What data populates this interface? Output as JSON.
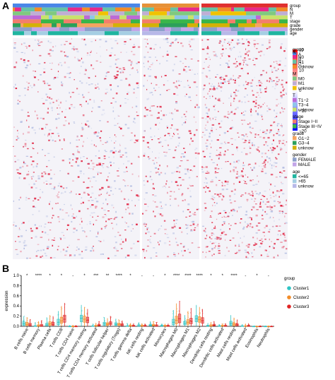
{
  "panel_a_label": "A",
  "panel_b_label": "B",
  "annotation_rows": [
    "group",
    "N",
    "M",
    "T",
    "stage",
    "grade",
    "gender",
    "age"
  ],
  "heatmap": {
    "scale_ticks": [
      "20",
      "10",
      "0",
      "−10",
      "−20"
    ],
    "group_legend": {
      "title": "group",
      "items": [
        {
          "label": "A",
          "color": "#4a86e8"
        },
        {
          "label": "B",
          "color": "#e69138"
        },
        {
          "label": "C",
          "color": "#e03030"
        }
      ]
    },
    "N_legend": {
      "title": "N",
      "items": [
        {
          "label": "N0",
          "color": "#e7298a"
        },
        {
          "label": "N1",
          "color": "#66c2a5"
        },
        {
          "label": "unknow",
          "color": "#f28c28"
        }
      ]
    },
    "M_legend": {
      "title": "M",
      "items": [
        {
          "label": "M0",
          "color": "#7fc97f"
        },
        {
          "label": "M1",
          "color": "#beaed4"
        },
        {
          "label": "unknow",
          "color": "#f0c200"
        }
      ]
    },
    "T_legend": {
      "title": "T",
      "items": [
        {
          "label": "T1−2",
          "color": "#bc6ad6"
        },
        {
          "label": "T3−4",
          "color": "#8ec6e8"
        },
        {
          "label": "unknow",
          "color": "#c8e36c"
        }
      ]
    },
    "stage_legend": {
      "title": "stage",
      "items": [
        {
          "label": "Stage I−II",
          "color": "#f37e6b"
        },
        {
          "label": "Stage III−IV",
          "color": "#39b54a"
        }
      ]
    },
    "grade_legend": {
      "title": "grade",
      "items": [
        {
          "label": "G1−2",
          "color": "#f4a460"
        },
        {
          "label": "G3−4",
          "color": "#2ca05a"
        },
        {
          "label": "unknow",
          "color": "#d4b106"
        }
      ]
    },
    "gender_legend": {
      "title": "gender",
      "items": [
        {
          "label": "FEMALE",
          "color": "#8da0cb"
        },
        {
          "label": "MALE",
          "color": "#c3a6e8"
        }
      ]
    },
    "age_legend": {
      "title": "age",
      "items": [
        {
          "label": "<=65",
          "color": "#1fb5a0"
        },
        {
          "label": ">65",
          "color": "#a6cee3"
        },
        {
          "label": "unknow",
          "color": "#b8b8e8"
        }
      ]
    }
  },
  "chart_data": {
    "type": "box",
    "ylabel": "expression",
    "ylim": [
      0,
      1.0
    ],
    "yticks": [
      "0.0",
      "0.2",
      "0.4",
      "0.6",
      "0.8",
      "1.0"
    ],
    "legend_title": "group",
    "legend_placement": "right",
    "categories": [
      "B cells naive",
      "B cells memory",
      "Plasma cells",
      "T cells CD8",
      "T cells CD4 naive",
      "T cells CD4 memory resting",
      "T cells CD4 memory activated",
      "T cells follicular helper",
      "T cells regulatory (Tregs)",
      "T cells gamma delta",
      "NK cells resting",
      "NK cells activated",
      "Monocytes",
      "Macrophages M0",
      "Macrophages M1",
      "Macrophages M2",
      "Dendritic cells resting",
      "Dendritic cells activated",
      "Mast cells resting",
      "Mast cells activated",
      "Eosinophils",
      "Neutrophils"
    ],
    "significance": [
      "*",
      "****",
      "*",
      "*",
      "-",
      "*",
      "***",
      "**",
      "****",
      "*",
      "-",
      "-",
      "*",
      "****",
      "****",
      "****",
      "*",
      "*",
      "****",
      "-",
      "*",
      "-"
    ],
    "series": [
      {
        "name": "Cluster1",
        "color": "#2ec4c4",
        "stats": [
          [
            0,
            0.02,
            0.05,
            0.09,
            0.2
          ],
          [
            0,
            0.0,
            0.0,
            0.01,
            0.08
          ],
          [
            0,
            0.01,
            0.03,
            0.06,
            0.17
          ],
          [
            0,
            0.03,
            0.08,
            0.14,
            0.3
          ],
          [
            0,
            0,
            0,
            0,
            0.02
          ],
          [
            0,
            0.09,
            0.16,
            0.22,
            0.42
          ],
          [
            0,
            0,
            0,
            0.01,
            0.05
          ],
          [
            0,
            0.02,
            0.05,
            0.08,
            0.18
          ],
          [
            0,
            0.02,
            0.04,
            0.07,
            0.15
          ],
          [
            0,
            0,
            0,
            0.01,
            0.06
          ],
          [
            0,
            0,
            0.01,
            0.03,
            0.08
          ],
          [
            0,
            0.01,
            0.02,
            0.04,
            0.1
          ],
          [
            0,
            0,
            0.01,
            0.02,
            0.05
          ],
          [
            0,
            0.03,
            0.08,
            0.14,
            0.32
          ],
          [
            0,
            0.03,
            0.06,
            0.1,
            0.22
          ],
          [
            0,
            0.09,
            0.15,
            0.21,
            0.42
          ],
          [
            0,
            0,
            0.01,
            0.02,
            0.06
          ],
          [
            0,
            0,
            0,
            0.01,
            0.04
          ],
          [
            0,
            0.02,
            0.06,
            0.1,
            0.22
          ],
          [
            0,
            0,
            0,
            0.01,
            0.04
          ],
          [
            0,
            0,
            0,
            0,
            0.01
          ],
          [
            0,
            0,
            0,
            0,
            0.01
          ]
        ]
      },
      {
        "name": "Cluster2",
        "color": "#f28c28",
        "stats": [
          [
            0,
            0.02,
            0.04,
            0.08,
            0.18
          ],
          [
            0,
            0,
            0.01,
            0.03,
            0.1
          ],
          [
            0,
            0.02,
            0.05,
            0.09,
            0.22
          ],
          [
            0,
            0.06,
            0.11,
            0.18,
            0.4
          ],
          [
            0,
            0,
            0,
            0,
            0.02
          ],
          [
            0,
            0.08,
            0.14,
            0.2,
            0.38
          ],
          [
            0,
            0,
            0.01,
            0.02,
            0.07
          ],
          [
            0,
            0.02,
            0.04,
            0.07,
            0.16
          ],
          [
            0,
            0.02,
            0.04,
            0.06,
            0.13
          ],
          [
            0,
            0,
            0.01,
            0.02,
            0.06
          ],
          [
            0,
            0,
            0.01,
            0.02,
            0.06
          ],
          [
            0,
            0.01,
            0.02,
            0.04,
            0.1
          ],
          [
            0,
            0,
            0.01,
            0.02,
            0.05
          ],
          [
            0,
            0.05,
            0.12,
            0.2,
            0.45
          ],
          [
            0,
            0.04,
            0.08,
            0.13,
            0.3
          ],
          [
            0,
            0.08,
            0.13,
            0.19,
            0.38
          ],
          [
            0,
            0,
            0.01,
            0.03,
            0.08
          ],
          [
            0,
            0,
            0.01,
            0.02,
            0.05
          ],
          [
            0,
            0.01,
            0.04,
            0.07,
            0.17
          ],
          [
            0,
            0,
            0,
            0.01,
            0.05
          ],
          [
            0,
            0,
            0,
            0,
            0.01
          ],
          [
            0,
            0,
            0,
            0,
            0.01
          ]
        ]
      },
      {
        "name": "Cluster3",
        "color": "#e02424",
        "stats": [
          [
            0,
            0.01,
            0.03,
            0.06,
            0.14
          ],
          [
            0,
            0,
            0.01,
            0.04,
            0.12
          ],
          [
            0,
            0.02,
            0.04,
            0.08,
            0.2
          ],
          [
            0,
            0.08,
            0.14,
            0.22,
            0.46
          ],
          [
            0,
            0,
            0,
            0,
            0.02
          ],
          [
            0,
            0.07,
            0.12,
            0.18,
            0.34
          ],
          [
            0,
            0.01,
            0.02,
            0.04,
            0.1
          ],
          [
            0,
            0.03,
            0.06,
            0.09,
            0.2
          ],
          [
            0,
            0.01,
            0.03,
            0.05,
            0.11
          ],
          [
            0,
            0,
            0.01,
            0.02,
            0.06
          ],
          [
            0,
            0,
            0.01,
            0.02,
            0.05
          ],
          [
            0,
            0,
            0.01,
            0.03,
            0.08
          ],
          [
            0,
            0,
            0.01,
            0.02,
            0.05
          ],
          [
            0,
            0.07,
            0.15,
            0.24,
            0.5
          ],
          [
            0,
            0.05,
            0.1,
            0.16,
            0.36
          ],
          [
            0,
            0.06,
            0.11,
            0.17,
            0.34
          ],
          [
            0,
            0.01,
            0.02,
            0.04,
            0.1
          ],
          [
            0,
            0,
            0.01,
            0.02,
            0.06
          ],
          [
            0,
            0.01,
            0.03,
            0.05,
            0.13
          ],
          [
            0,
            0,
            0.01,
            0.02,
            0.06
          ],
          [
            0,
            0,
            0,
            0,
            0.01
          ],
          [
            0,
            0,
            0,
            0,
            0.01
          ]
        ]
      }
    ]
  }
}
